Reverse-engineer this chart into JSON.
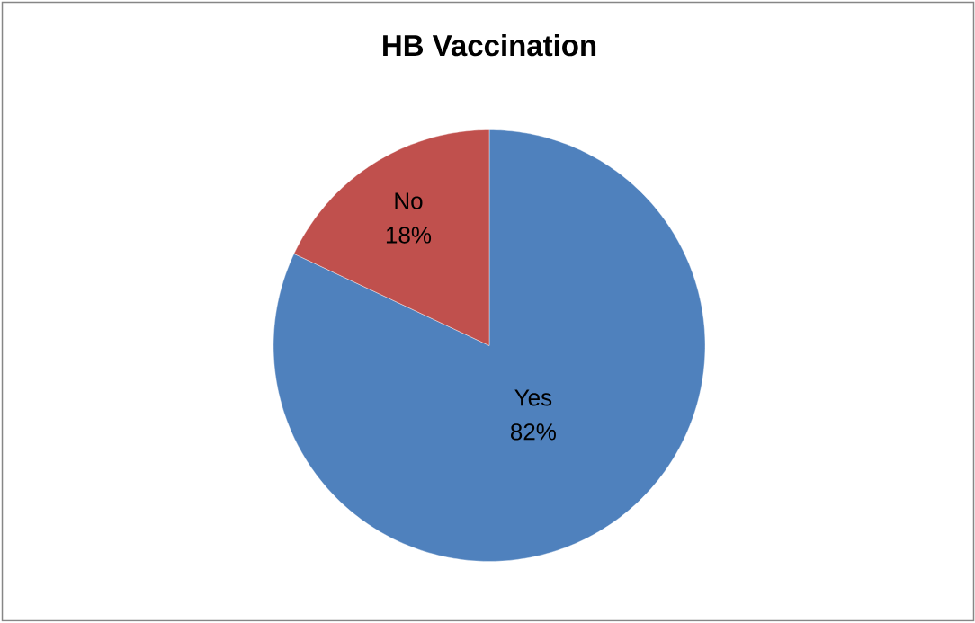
{
  "chart_data": {
    "type": "pie",
    "title": "HB Vaccination",
    "categories": [
      "Yes",
      "No"
    ],
    "values": [
      82,
      18
    ],
    "colors": [
      "#4f81bd",
      "#c0504d"
    ],
    "value_labels": [
      "82%",
      "18%"
    ]
  }
}
